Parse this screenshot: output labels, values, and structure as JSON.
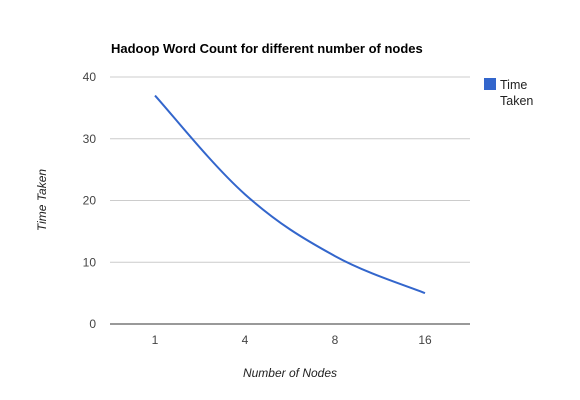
{
  "chart_data": {
    "type": "line",
    "title": "Hadoop Word Count for different number of nodes",
    "xlabel": "Number of Nodes",
    "ylabel": "Time Taken",
    "categories": [
      "1",
      "4",
      "8",
      "16"
    ],
    "series": [
      {
        "name": "Time Taken",
        "values": [
          37,
          21,
          11,
          5
        ],
        "color": "#3366cc"
      }
    ],
    "ylim": [
      0,
      40
    ],
    "yticks": [
      0,
      10,
      20,
      30,
      40
    ],
    "grid": true,
    "legend_position": "right",
    "legend_lines": [
      "Time",
      "Taken"
    ]
  }
}
